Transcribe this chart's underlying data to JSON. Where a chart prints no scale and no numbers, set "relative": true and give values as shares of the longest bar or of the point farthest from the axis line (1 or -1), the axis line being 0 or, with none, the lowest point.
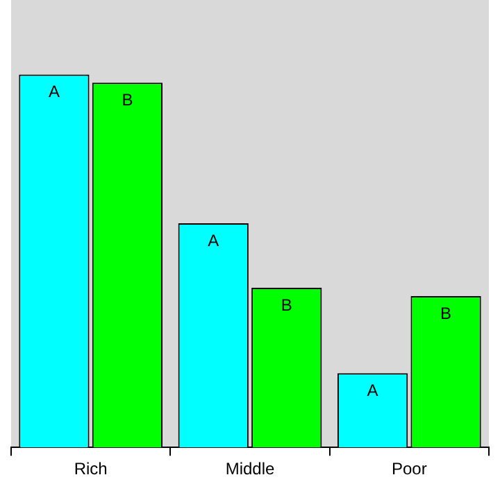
{
  "chart_data": {
    "type": "bar",
    "relative": true,
    "categories": [
      "Rich",
      "Middle",
      "Poor"
    ],
    "series": [
      {
        "name": "A",
        "color": "#00ffff",
        "values": [
          1,
          0.601,
          0.199
        ]
      },
      {
        "name": "B",
        "color": "#00ff00",
        "values": [
          0.978,
          0.428,
          0.406
        ]
      }
    ],
    "legend": false,
    "grid": false
  }
}
